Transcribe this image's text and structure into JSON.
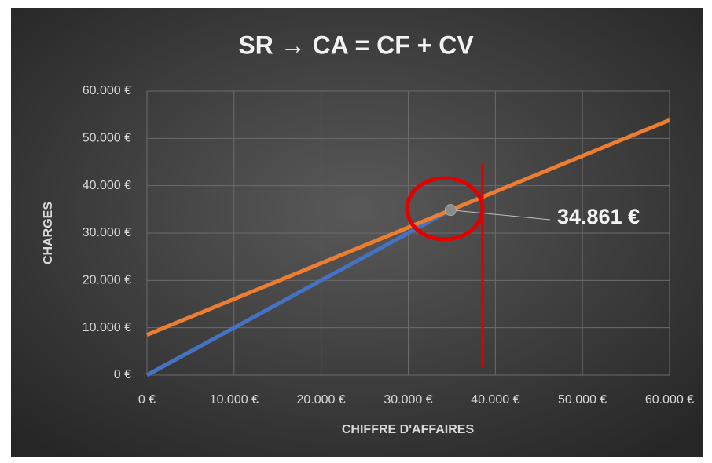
{
  "chart_data": {
    "type": "line",
    "title": "SR → CA = CF + CV",
    "x_label": "CHIFFRE D'AFFAIRES",
    "y_label": "CHARGES",
    "series": [
      {
        "color": "#4472c4",
        "x": [
          0,
          34861
        ],
        "values": [
          0,
          34861
        ]
      },
      {
        "color": "#ed7d31",
        "x": [
          0,
          60000
        ],
        "values": [
          8500,
          53860
        ]
      }
    ],
    "xlim": [
      0,
      60000
    ],
    "ylim": [
      0,
      60000
    ],
    "xticks": [
      {
        "value": 0,
        "label": "0 €"
      },
      {
        "value": 10000,
        "label": "10.000 €"
      },
      {
        "value": 20000,
        "label": "20.000 €"
      },
      {
        "value": 30000,
        "label": "30.000 €"
      },
      {
        "value": 40000,
        "label": "40.000 €"
      },
      {
        "value": 50000,
        "label": "50.000 €"
      },
      {
        "value": 60000,
        "label": "60.000 €"
      }
    ],
    "yticks": [
      {
        "value": 0,
        "label": "0 €"
      },
      {
        "value": 10000,
        "label": "10.000 €"
      },
      {
        "value": 20000,
        "label": "20.000 €"
      },
      {
        "value": 30000,
        "label": "30.000 €"
      },
      {
        "value": 40000,
        "label": "40.000 €"
      },
      {
        "value": 50000,
        "label": "50.000 €"
      },
      {
        "value": 60000,
        "label": "60.000 €"
      }
    ],
    "grid": true,
    "annotation": {
      "x": 34861,
      "y": 34861,
      "label": "34.861 €"
    }
  }
}
